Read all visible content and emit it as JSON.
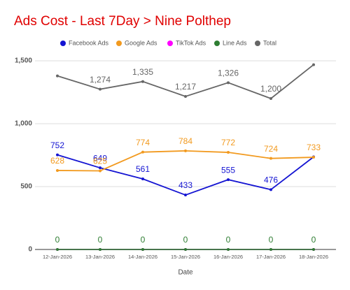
{
  "chart_data": {
    "type": "line",
    "title": "Ads Cost - Last 7Day > Nine Polthep",
    "x_label": "Date",
    "categories": [
      "12-Jan-2026",
      "13-Jan-2026",
      "14-Jan-2026",
      "15-Jan-2026",
      "16-Jan-2026",
      "17-Jan-2026",
      "18-Jan-2026"
    ],
    "series": [
      {
        "name": "Facebook Ads",
        "color": "#1414d2",
        "values": [
          752,
          649,
          561,
          433,
          555,
          476,
          736
        ],
        "value_labels": [
          "752",
          "649",
          "561",
          "433",
          "555",
          "476",
          null
        ]
      },
      {
        "name": "Google Ads",
        "color": "#f29a1f",
        "values": [
          628,
          625,
          774,
          784,
          772,
          724,
          733
        ]
      },
      {
        "name": "TikTok Ads",
        "color": "#ff00ff",
        "values": [
          0,
          0,
          0,
          0,
          0,
          0,
          0
        ],
        "value_labels": [
          null,
          null,
          null,
          null,
          null,
          null,
          null
        ]
      },
      {
        "name": "Line Ads",
        "color": "#2e7d32",
        "values": [
          0,
          0,
          0,
          0,
          0,
          0,
          0
        ]
      },
      {
        "name": "Total",
        "color": "#666666",
        "values": [
          1380,
          1274,
          1335,
          1217,
          1326,
          1200,
          1469
        ],
        "value_labels": [
          null,
          "1,274",
          "1,335",
          "1,217",
          "1,326",
          "1,200",
          null
        ]
      }
    ],
    "ylim": [
      0,
      1600
    ],
    "yticks": [
      0,
      500,
      {
        "value": 1000,
        "label": "1,000"
      },
      {
        "value": 1500,
        "label": "1,500"
      }
    ],
    "grid": true,
    "legend": "top"
  }
}
